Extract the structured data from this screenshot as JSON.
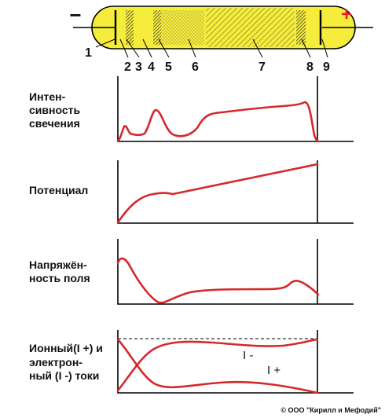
{
  "tube": {
    "minus_sign": "−",
    "plus_sign": "+",
    "region_labels": [
      "1",
      "2",
      "3",
      "4",
      "5",
      "6",
      "7",
      "8",
      "9"
    ],
    "colors": {
      "glass": "#f5ec3c",
      "outline": "#000000",
      "plus": "#e0202a",
      "hatch": "#8a8a30"
    }
  },
  "panels": [
    {
      "id": "intensity",
      "label_lines": [
        "Интен-",
        "сивность",
        "свечения"
      ]
    },
    {
      "id": "potential",
      "label_lines": [
        "Потенциал"
      ]
    },
    {
      "id": "field",
      "label_lines": [
        "Напряжён-",
        "ность поля"
      ]
    },
    {
      "id": "currents",
      "label_lines": [
        "Ионный(I +) и",
        "электрон-",
        "ный (I -) токи"
      ],
      "curve_labels": {
        "electron": "I -",
        "ion": "I +"
      }
    }
  ],
  "colors": {
    "curve": "#d6282c",
    "axis": "#000000"
  },
  "copyright": "© ООО \"Кирилл и Мефодий\""
}
